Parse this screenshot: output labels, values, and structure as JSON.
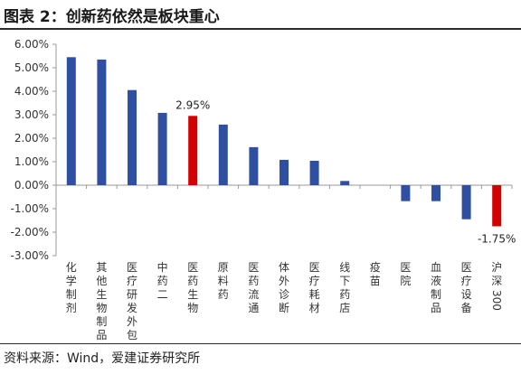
{
  "figure": {
    "title": "图表 2：创新药依然是板块重心",
    "source": "资料来源：Wind，爱建证券研究所"
  },
  "colors": {
    "bar_default": "#2f4fa2",
    "bar_highlight": "#d40000",
    "axis": "#999999"
  },
  "chart_data": {
    "type": "bar",
    "categories": [
      "化学制剂",
      "其他生物制品",
      "医疗研发外包",
      "中药二",
      "医药生物",
      "原料药",
      "医药流通",
      "体外诊断",
      "医疗耗材",
      "线下药店",
      "疫苗",
      "医院",
      "血液制品",
      "医疗设备",
      "沪深300"
    ],
    "values": [
      5.45,
      5.35,
      4.05,
      3.08,
      2.95,
      2.58,
      1.62,
      1.08,
      1.04,
      0.18,
      0.0,
      -0.68,
      -0.68,
      -1.45,
      -1.75
    ],
    "highlight": [
      "医药生物",
      "沪深300"
    ],
    "data_labels": [
      {
        "category": "医药生物",
        "text": "2.95%"
      },
      {
        "category": "沪深300",
        "text": "-1.75%"
      }
    ],
    "yticks": [
      "6.00%",
      "5.00%",
      "4.00%",
      "3.00%",
      "2.00%",
      "1.00%",
      "0.00%",
      "-1.00%",
      "-2.00%",
      "-3.00%"
    ],
    "ylim": [
      -3,
      6
    ],
    "xlabel": "",
    "ylabel": "",
    "grid": false,
    "legend": "none"
  }
}
